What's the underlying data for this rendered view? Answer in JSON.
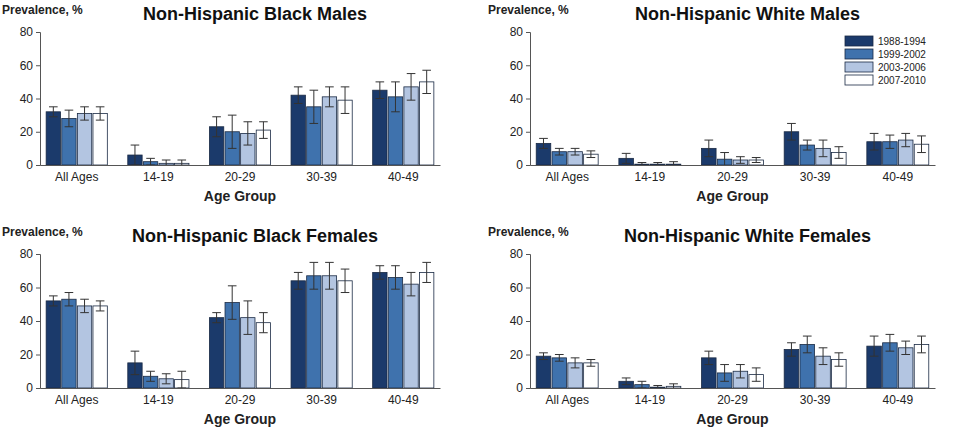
{
  "chart_data": [
    {
      "type": "bar",
      "title": "Non-Hispanic Black Males",
      "y_label": "Prevalence, %",
      "x_label": "Age Group",
      "categories": [
        "All Ages",
        "14-19",
        "20-29",
        "30-39",
        "40-49"
      ],
      "series": [
        {
          "color": "#1b3a6b",
          "values": [
            32,
            6,
            23,
            42,
            45
          ],
          "errors": [
            3,
            6,
            6,
            5,
            5
          ]
        },
        {
          "color": "#3f72ad",
          "values": [
            28,
            2,
            20,
            35,
            41
          ],
          "errors": [
            5,
            2,
            10,
            10,
            9
          ]
        },
        {
          "color": "#b3c5e1",
          "values": [
            31,
            1,
            19,
            41,
            47
          ],
          "errors": [
            4,
            2,
            7,
            6,
            8
          ]
        },
        {
          "color": "#ffffff",
          "values": [
            31,
            1,
            21,
            39,
            50
          ],
          "errors": [
            4,
            2,
            5,
            8,
            7
          ]
        }
      ],
      "ylim": [
        0,
        80
      ],
      "yticks": [
        0,
        20,
        40,
        60,
        80
      ]
    },
    {
      "type": "bar",
      "title": "Non-Hispanic White Males",
      "y_label": "Prevalence, %",
      "x_label": "Age Group",
      "categories": [
        "All Ages",
        "14-19",
        "20-29",
        "30-39",
        "40-49"
      ],
      "series": [
        {
          "name": "1988-1994",
          "color": "#1b3a6b",
          "values": [
            13,
            4,
            10,
            20,
            14
          ],
          "errors": [
            3,
            3,
            5,
            5,
            5
          ]
        },
        {
          "name": "1999-2002",
          "color": "#3f72ad",
          "values": [
            8,
            0.5,
            3.5,
            12,
            14
          ],
          "errors": [
            2,
            1,
            4,
            3,
            4
          ]
        },
        {
          "name": "2003-2006",
          "color": "#b3c5e1",
          "values": [
            8,
            0.5,
            3,
            10,
            15
          ],
          "errors": [
            2,
            1,
            2,
            5,
            4
          ]
        },
        {
          "name": "2007-2010",
          "color": "#ffffff",
          "values": [
            6.5,
            0.5,
            3,
            7.5,
            12.5
          ],
          "errors": [
            2,
            1.5,
            1.5,
            3.5,
            5
          ]
        }
      ],
      "ylim": [
        0,
        80
      ],
      "yticks": [
        0,
        20,
        40,
        60,
        80
      ],
      "legend": "upper right"
    },
    {
      "type": "bar",
      "title": "Non-Hispanic Black Females",
      "y_label": "Prevalence, %",
      "x_label": "Age Group",
      "categories": [
        "All Ages",
        "14-19",
        "20-29",
        "30-39",
        "40-49"
      ],
      "series": [
        {
          "color": "#1b3a6b",
          "values": [
            52,
            15,
            42,
            64,
            69
          ],
          "errors": [
            3,
            7,
            3,
            5,
            4
          ]
        },
        {
          "color": "#3f72ad",
          "values": [
            53,
            7,
            51,
            67,
            66
          ],
          "errors": [
            4,
            3,
            10,
            8,
            7
          ]
        },
        {
          "color": "#b3c5e1",
          "values": [
            49,
            5.5,
            42,
            67,
            62
          ],
          "errors": [
            4,
            3,
            10,
            8,
            7
          ]
        },
        {
          "color": "#ffffff",
          "values": [
            49,
            5,
            39,
            64,
            69
          ],
          "errors": [
            3,
            5,
            6,
            7,
            6
          ]
        }
      ],
      "ylim": [
        0,
        80
      ],
      "yticks": [
        0,
        20,
        40,
        60,
        80
      ]
    },
    {
      "type": "bar",
      "title": "Non-Hispanic White Females",
      "y_label": "Prevalence, %",
      "x_label": "Age Group",
      "categories": [
        "All Ages",
        "14-19",
        "20-29",
        "30-39",
        "40-49"
      ],
      "series": [
        {
          "color": "#1b3a6b",
          "values": [
            19,
            4,
            18,
            23,
            25
          ],
          "errors": [
            2,
            2,
            4,
            4,
            6
          ]
        },
        {
          "color": "#3f72ad",
          "values": [
            18,
            2,
            9,
            26,
            27
          ],
          "errors": [
            2,
            2,
            5,
            5,
            5
          ]
        },
        {
          "color": "#b3c5e1",
          "values": [
            15,
            0.5,
            10,
            19,
            24
          ],
          "errors": [
            3,
            1,
            4,
            5,
            4
          ]
        },
        {
          "color": "#ffffff",
          "values": [
            15,
            1,
            8,
            17,
            26
          ],
          "errors": [
            2,
            1.5,
            4,
            4,
            5
          ]
        }
      ],
      "ylim": [
        0,
        80
      ],
      "yticks": [
        0,
        20,
        40,
        60,
        80
      ]
    }
  ]
}
